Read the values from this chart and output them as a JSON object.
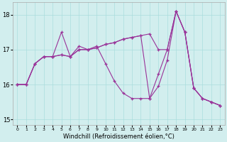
{
  "background_color": "#d2eeee",
  "grid_color": "#aadddd",
  "line_color": "#993399",
  "xlim": [
    -0.5,
    23.5
  ],
  "ylim": [
    14.85,
    18.35
  ],
  "yticks": [
    15,
    16,
    17,
    18
  ],
  "xtick_labels": [
    "0",
    "1",
    "2",
    "3",
    "4",
    "5",
    "6",
    "7",
    "8",
    "9",
    "10",
    "11",
    "12",
    "13",
    "14",
    "15",
    "16",
    "17",
    "18",
    "19",
    "20",
    "21",
    "22",
    "23"
  ],
  "xlabel": "Windchill (Refroidissement éolien,°C)",
  "xlabel_fontsize": 6.0,
  "series": [
    {
      "x": [
        0,
        1,
        2,
        3,
        4,
        5,
        6,
        7,
        8,
        9,
        10,
        11,
        12,
        13,
        14,
        15,
        16,
        17,
        18,
        19,
        20,
        21,
        22,
        23
      ],
      "y": [
        16.0,
        16.0,
        16.6,
        16.8,
        16.8,
        17.5,
        16.8,
        17.1,
        17.0,
        17.1,
        16.6,
        16.1,
        15.75,
        15.6,
        15.6,
        15.6,
        16.3,
        17.0,
        18.1,
        17.5,
        15.9,
        15.6,
        15.5,
        15.4
      ]
    },
    {
      "x": [
        0,
        1,
        2,
        3,
        4,
        5,
        6,
        7,
        8,
        9,
        10,
        11,
        12,
        13,
        14,
        15,
        16,
        17,
        18,
        19,
        20,
        21,
        22,
        23
      ],
      "y": [
        16.0,
        16.0,
        16.6,
        16.8,
        16.8,
        16.85,
        16.8,
        17.0,
        17.0,
        17.05,
        17.15,
        17.2,
        17.3,
        17.35,
        17.4,
        17.45,
        17.0,
        17.0,
        18.1,
        17.5,
        15.9,
        15.6,
        15.5,
        15.4
      ]
    },
    {
      "x": [
        0,
        1,
        2,
        3,
        4,
        5,
        6,
        7,
        8,
        9,
        10,
        11,
        12,
        13,
        14,
        15,
        16,
        17,
        18,
        19,
        20,
        21,
        22,
        23
      ],
      "y": [
        16.0,
        16.0,
        16.6,
        16.8,
        16.8,
        16.85,
        16.8,
        17.0,
        17.0,
        17.05,
        17.15,
        17.2,
        17.3,
        17.35,
        17.4,
        15.6,
        15.95,
        16.7,
        18.1,
        17.5,
        15.9,
        15.6,
        15.5,
        15.4
      ]
    }
  ]
}
